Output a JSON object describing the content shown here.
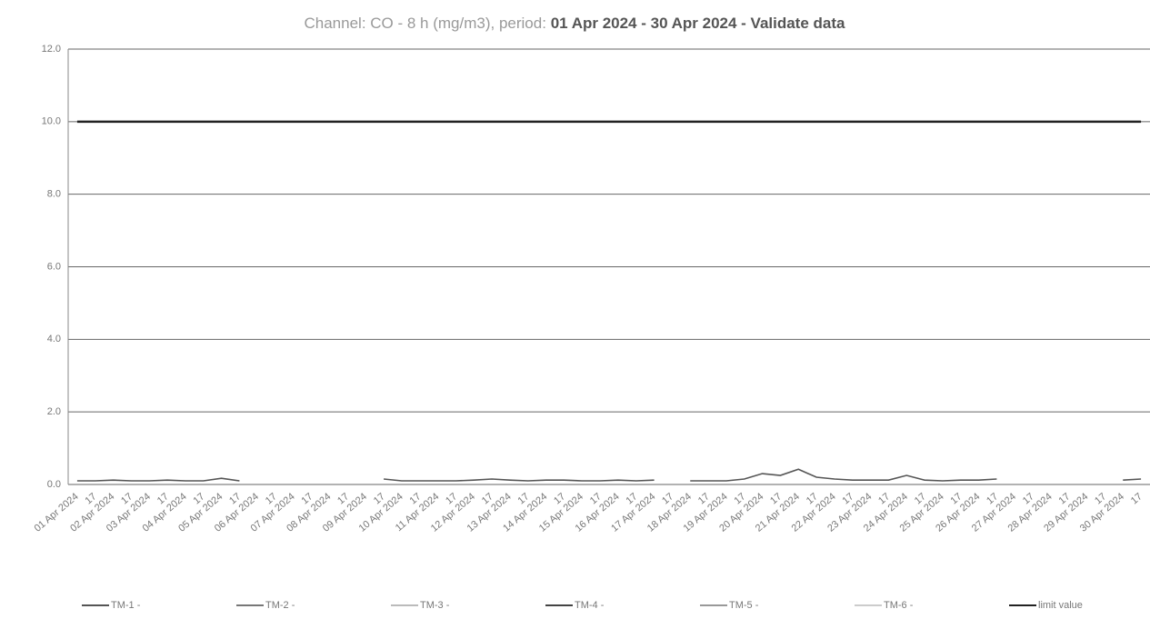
{
  "chart_data": {
    "type": "line",
    "title_prefix": "Channel: CO - 8 h (mg/m3), period:",
    "title_period": "01 Apr 2024 - 30 Apr 2024 - Validate data",
    "categories": [
      "01 Apr 2024",
      "17",
      "02 Apr 2024",
      "17",
      "03 Apr 2024",
      "17",
      "04 Apr 2024",
      "17",
      "05 Apr 2024",
      "17",
      "06 Apr 2024",
      "17",
      "07 Apr 2024",
      "17",
      "08 Apr 2024",
      "17",
      "09 Apr 2024",
      "17",
      "10 Apr 2024",
      "17",
      "11 Apr 2024",
      "17",
      "12 Apr 2024",
      "17",
      "13 Apr 2024",
      "17",
      "14 Apr 2024",
      "17",
      "15 Apr 2024",
      "17",
      "16 Apr 2024",
      "17",
      "17 Apr 2024",
      "17",
      "18 Apr 2024",
      "17",
      "19 Apr 2024",
      "17",
      "20 Apr 2024",
      "17",
      "21 Apr 2024",
      "17",
      "22 Apr 2024",
      "17",
      "23 Apr 2024",
      "17",
      "24 Apr 2024",
      "17",
      "25 Apr 2024",
      "17",
      "26 Apr 2024",
      "17",
      "27 Apr 2024",
      "17",
      "28 Apr 2024",
      "17",
      "29 Apr 2024",
      "17",
      "30 Apr 2024",
      "17"
    ],
    "series": [
      {
        "name": "TM-1 -",
        "color": "#555555",
        "values": [
          0.1,
          0.1,
          0.12,
          0.1,
          0.1,
          0.12,
          0.1,
          0.1,
          0.17,
          0.1,
          null,
          null,
          null,
          null,
          null,
          null,
          null,
          0.15,
          0.1,
          0.1,
          0.1,
          0.1,
          0.12,
          0.15,
          0.12,
          0.1,
          0.12,
          0.12,
          0.1,
          0.1,
          0.12,
          0.1,
          0.12,
          null,
          0.1,
          0.1,
          0.1,
          0.15,
          0.3,
          0.25,
          0.42,
          0.2,
          0.15,
          0.12,
          0.12,
          0.12,
          0.25,
          0.12,
          0.1,
          0.12,
          0.12,
          0.15,
          null,
          null,
          null,
          null,
          null,
          null,
          0.12,
          0.15
        ]
      },
      {
        "name": "TM-2 -",
        "color": "#777777",
        "values": [
          null,
          null,
          null,
          null,
          null,
          null,
          null,
          null,
          null,
          null,
          null,
          null,
          null,
          null,
          null,
          null,
          null,
          null,
          null,
          null,
          null,
          null,
          null,
          null,
          null,
          null,
          null,
          null,
          null,
          null,
          null,
          null,
          null,
          null,
          null,
          null,
          null,
          null,
          null,
          null,
          null,
          null,
          null,
          null,
          null,
          null,
          null,
          null,
          null,
          null,
          null,
          null,
          null,
          null,
          null,
          null,
          null,
          null,
          null,
          null
        ]
      },
      {
        "name": "TM-3 -",
        "color": "#bbbbbb",
        "values": [
          null,
          null,
          null,
          null,
          null,
          null,
          null,
          null,
          null,
          null,
          null,
          null,
          null,
          null,
          null,
          null,
          null,
          null,
          null,
          null,
          null,
          null,
          null,
          null,
          null,
          null,
          null,
          null,
          null,
          null,
          null,
          null,
          null,
          null,
          null,
          null,
          null,
          null,
          null,
          null,
          null,
          null,
          null,
          null,
          null,
          null,
          null,
          null,
          null,
          null,
          null,
          null,
          null,
          null,
          null,
          null,
          null,
          null,
          null,
          null
        ]
      },
      {
        "name": "TM-4 -",
        "color": "#444444",
        "values": [
          null,
          null,
          null,
          null,
          null,
          null,
          null,
          null,
          null,
          null,
          null,
          null,
          null,
          null,
          null,
          null,
          null,
          null,
          null,
          null,
          null,
          null,
          null,
          null,
          null,
          null,
          null,
          null,
          null,
          null,
          null,
          null,
          null,
          null,
          null,
          null,
          null,
          null,
          null,
          null,
          null,
          null,
          null,
          null,
          null,
          null,
          null,
          null,
          null,
          null,
          null,
          null,
          null,
          null,
          null,
          null,
          null,
          null,
          null,
          null
        ]
      },
      {
        "name": "TM-5 -",
        "color": "#999999",
        "values": [
          null,
          null,
          null,
          null,
          null,
          null,
          null,
          null,
          null,
          null,
          null,
          null,
          null,
          null,
          null,
          null,
          null,
          null,
          null,
          null,
          null,
          null,
          null,
          null,
          null,
          null,
          null,
          null,
          null,
          null,
          null,
          null,
          null,
          null,
          null,
          null,
          null,
          null,
          null,
          null,
          null,
          null,
          null,
          null,
          null,
          null,
          null,
          null,
          null,
          null,
          null,
          null,
          null,
          null,
          null,
          null,
          null,
          null,
          null,
          null
        ]
      },
      {
        "name": "TM-6 -",
        "color": "#cccccc",
        "values": [
          null,
          null,
          null,
          null,
          null,
          null,
          null,
          null,
          null,
          null,
          null,
          null,
          null,
          null,
          null,
          null,
          null,
          null,
          null,
          null,
          null,
          null,
          null,
          null,
          null,
          null,
          null,
          null,
          null,
          null,
          null,
          null,
          null,
          null,
          null,
          null,
          null,
          null,
          null,
          null,
          null,
          null,
          null,
          null,
          null,
          null,
          null,
          null,
          null,
          null,
          null,
          null,
          null,
          null,
          null,
          null,
          null,
          null,
          null,
          null
        ]
      },
      {
        "name": "limit value",
        "color": "#222222",
        "values": [
          10,
          10,
          10,
          10,
          10,
          10,
          10,
          10,
          10,
          10,
          10,
          10,
          10,
          10,
          10,
          10,
          10,
          10,
          10,
          10,
          10,
          10,
          10,
          10,
          10,
          10,
          10,
          10,
          10,
          10,
          10,
          10,
          10,
          10,
          10,
          10,
          10,
          10,
          10,
          10,
          10,
          10,
          10,
          10,
          10,
          10,
          10,
          10,
          10,
          10,
          10,
          10,
          10,
          10,
          10,
          10,
          10,
          10,
          10,
          10
        ]
      }
    ],
    "ylim": [
      0,
      12
    ],
    "yticks": [
      {
        "value": 0,
        "label": "0.0"
      },
      {
        "value": 2,
        "label": "2.0"
      },
      {
        "value": 4,
        "label": "4.0"
      },
      {
        "value": 6,
        "label": "6.0"
      },
      {
        "value": 8,
        "label": "8.0"
      },
      {
        "value": 10,
        "label": "10.0"
      },
      {
        "value": 12,
        "label": "12.0"
      }
    ],
    "grid": true
  }
}
